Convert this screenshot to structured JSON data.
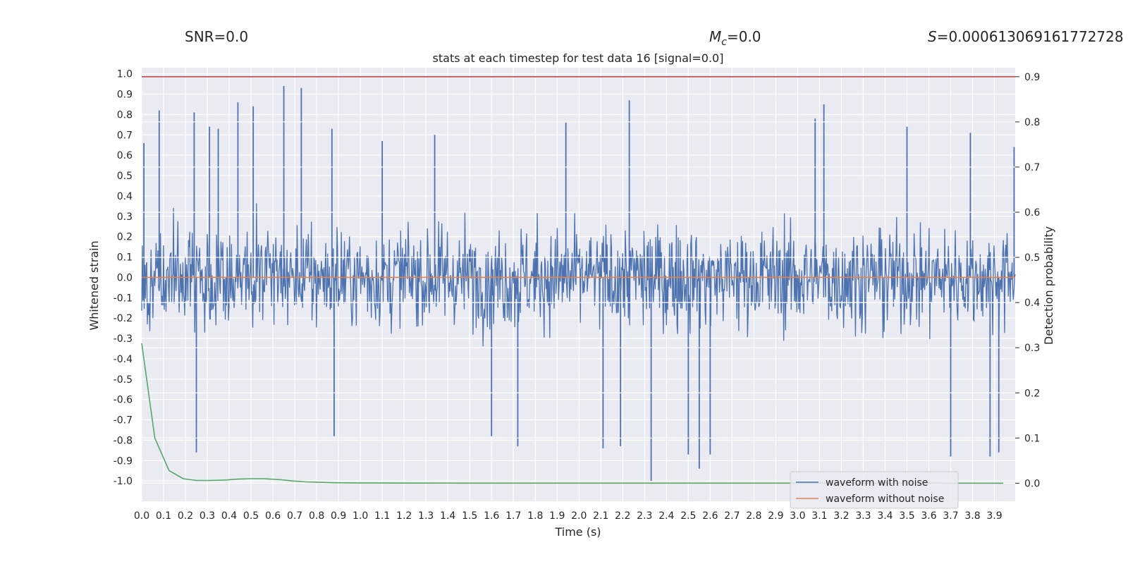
{
  "header": {
    "snr_text": "SNR=0.0",
    "mc_text": "=0.0",
    "mc_symbol": "M",
    "mc_subscript": "c",
    "s_symbol": "S",
    "s_text": "=0.000613069161772728"
  },
  "chart_data": {
    "type": "line",
    "title": "stats at each timestep for test data 16 [signal=0.0]",
    "xlabel": "Time (s)",
    "ylabel": "Whitened strain",
    "ylabel_right": "Detection probability",
    "xlim": [
      0.0,
      3.995
    ],
    "ylim": [
      -1.1,
      1.03
    ],
    "ylim_right": [
      -0.04,
      0.92
    ],
    "x_ticks": [
      "0.0",
      "0.1",
      "0.2",
      "0.3",
      "0.4",
      "0.5",
      "0.6",
      "0.7",
      "0.8",
      "0.9",
      "1.0",
      "1.1",
      "1.2",
      "1.3",
      "1.4",
      "1.5",
      "1.6",
      "1.7",
      "1.8",
      "1.9",
      "2.0",
      "2.1",
      "2.2",
      "2.3",
      "2.4",
      "2.5",
      "2.6",
      "2.7",
      "2.8",
      "2.9",
      "3.0",
      "3.1",
      "3.2",
      "3.3",
      "3.4",
      "3.5",
      "3.6",
      "3.7",
      "3.8",
      "3.9"
    ],
    "y_ticks": [
      "1.0",
      "0.9",
      "0.8",
      "0.7",
      "0.6",
      "0.5",
      "0.4",
      "0.3",
      "0.2",
      "0.1",
      "0.0",
      "-0.1",
      "-0.2",
      "-0.3",
      "-0.4",
      "-0.5",
      "-0.6",
      "-0.7",
      "-0.8",
      "-0.9",
      "-1.0"
    ],
    "y_ticks_right": [
      "0.9",
      "0.8",
      "0.7",
      "0.6",
      "0.5",
      "0.4",
      "0.3",
      "0.2",
      "0.1",
      "0.0"
    ],
    "grid": true,
    "legend_placement": "lower-right",
    "colors": {
      "background": "#eaeaf2",
      "noisy": "#4c72b0",
      "clean": "#dd8452",
      "probability": "#55a868",
      "threshold": "#c44e52"
    },
    "series": [
      {
        "name": "waveform with noise",
        "axis": "left",
        "description_values": "dense whitened strain noise, mostly within -0.5..0.5 with peaks reaching about 0.94 and -1.0",
        "x_range": [
          0.0,
          3.995
        ],
        "spikes": [
          [
            0.01,
            0.66
          ],
          [
            0.08,
            0.82
          ],
          [
            0.24,
            0.81
          ],
          [
            0.25,
            -0.86
          ],
          [
            0.31,
            0.74
          ],
          [
            0.35,
            0.73
          ],
          [
            0.44,
            0.86
          ],
          [
            0.51,
            0.84
          ],
          [
            0.65,
            0.94
          ],
          [
            0.73,
            0.93
          ],
          [
            0.87,
            0.73
          ],
          [
            0.88,
            -0.78
          ],
          [
            1.1,
            0.67
          ],
          [
            1.34,
            0.7
          ],
          [
            1.6,
            -0.78
          ],
          [
            1.72,
            -0.83
          ],
          [
            1.94,
            0.76
          ],
          [
            2.11,
            -0.84
          ],
          [
            2.19,
            -0.83
          ],
          [
            2.23,
            0.87
          ],
          [
            2.33,
            -1.0
          ],
          [
            2.5,
            -0.87
          ],
          [
            2.55,
            -0.94
          ],
          [
            2.6,
            -0.87
          ],
          [
            3.08,
            0.78
          ],
          [
            3.12,
            0.85
          ],
          [
            3.5,
            0.74
          ],
          [
            3.7,
            -0.88
          ],
          [
            3.79,
            0.71
          ],
          [
            3.88,
            -0.88
          ],
          [
            3.92,
            -0.86
          ],
          [
            3.99,
            0.64
          ]
        ]
      },
      {
        "name": "waveform without noise",
        "axis": "left",
        "x": [
          0.0,
          3.995
        ],
        "y": [
          0.0,
          0.0
        ]
      },
      {
        "name": "",
        "axis": "right",
        "x": [
          0.0,
          0.06,
          0.125,
          0.19,
          0.25,
          0.31,
          0.38,
          0.44,
          0.5,
          0.56,
          0.63,
          0.69,
          0.75,
          0.81,
          0.88,
          1.0,
          1.25,
          1.5,
          2.0,
          2.5,
          3.0,
          3.5,
          3.94
        ],
        "y": [
          0.31,
          0.1,
          0.028,
          0.01,
          0.006,
          0.006,
          0.007,
          0.009,
          0.01,
          0.01,
          0.008,
          0.005,
          0.003,
          0.002,
          0.001,
          0.0005,
          0.0002,
          0.0001,
          0.0001,
          0.0001,
          0.0001,
          0.0001,
          0.0
        ]
      },
      {
        "name": "",
        "axis": "right",
        "x": [
          0.0,
          3.995
        ],
        "y": [
          0.9,
          0.9
        ]
      }
    ]
  }
}
